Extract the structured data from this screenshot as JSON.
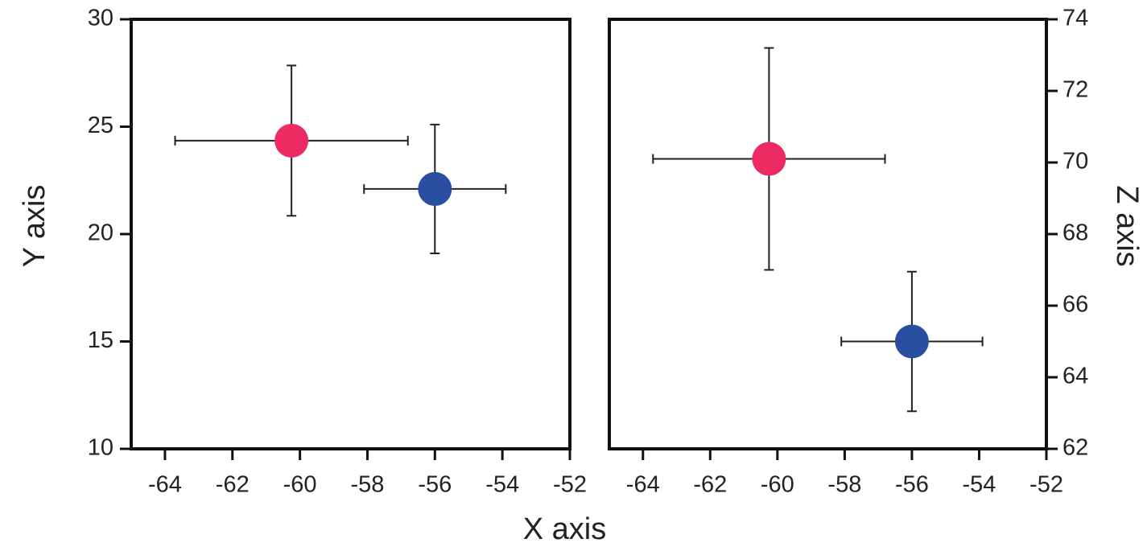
{
  "chart_data": [
    {
      "type": "scatter",
      "xlabel": "X axis",
      "ylabel": "Y axis",
      "xlim": [
        -65,
        -52
      ],
      "xticks": [
        -64,
        -62,
        -60,
        -58,
        -56,
        -54,
        -52
      ],
      "ylim": [
        10,
        30
      ],
      "yticks": [
        10,
        15,
        20,
        25,
        30
      ],
      "series": [
        {
          "color": "#ee2a65",
          "x": [
            -60.25
          ],
          "values": [
            24.35
          ],
          "xerr": [
            3.45
          ],
          "yerr": [
            3.5
          ]
        },
        {
          "color": "#2a4fa0",
          "x": [
            -56.0
          ],
          "values": [
            22.1
          ],
          "xerr": [
            2.1
          ],
          "yerr": [
            3.0
          ]
        }
      ]
    },
    {
      "type": "scatter",
      "ylabel": "Z axis",
      "xlim": [
        -65,
        -52
      ],
      "xticks": [
        -64,
        -62,
        -60,
        -58,
        -56,
        -54,
        -52
      ],
      "ylim": [
        62,
        74
      ],
      "yticks": [
        62,
        64,
        66,
        68,
        70,
        72,
        74
      ],
      "series": [
        {
          "color": "#ee2a65",
          "x": [
            -60.25
          ],
          "values": [
            70.1
          ],
          "xerr": [
            3.45
          ],
          "yerr": [
            3.1
          ]
        },
        {
          "color": "#2a4fa0",
          "x": [
            -56.0
          ],
          "values": [
            65.0
          ],
          "xerr": [
            2.1
          ],
          "yerr": [
            1.95
          ]
        }
      ]
    }
  ]
}
